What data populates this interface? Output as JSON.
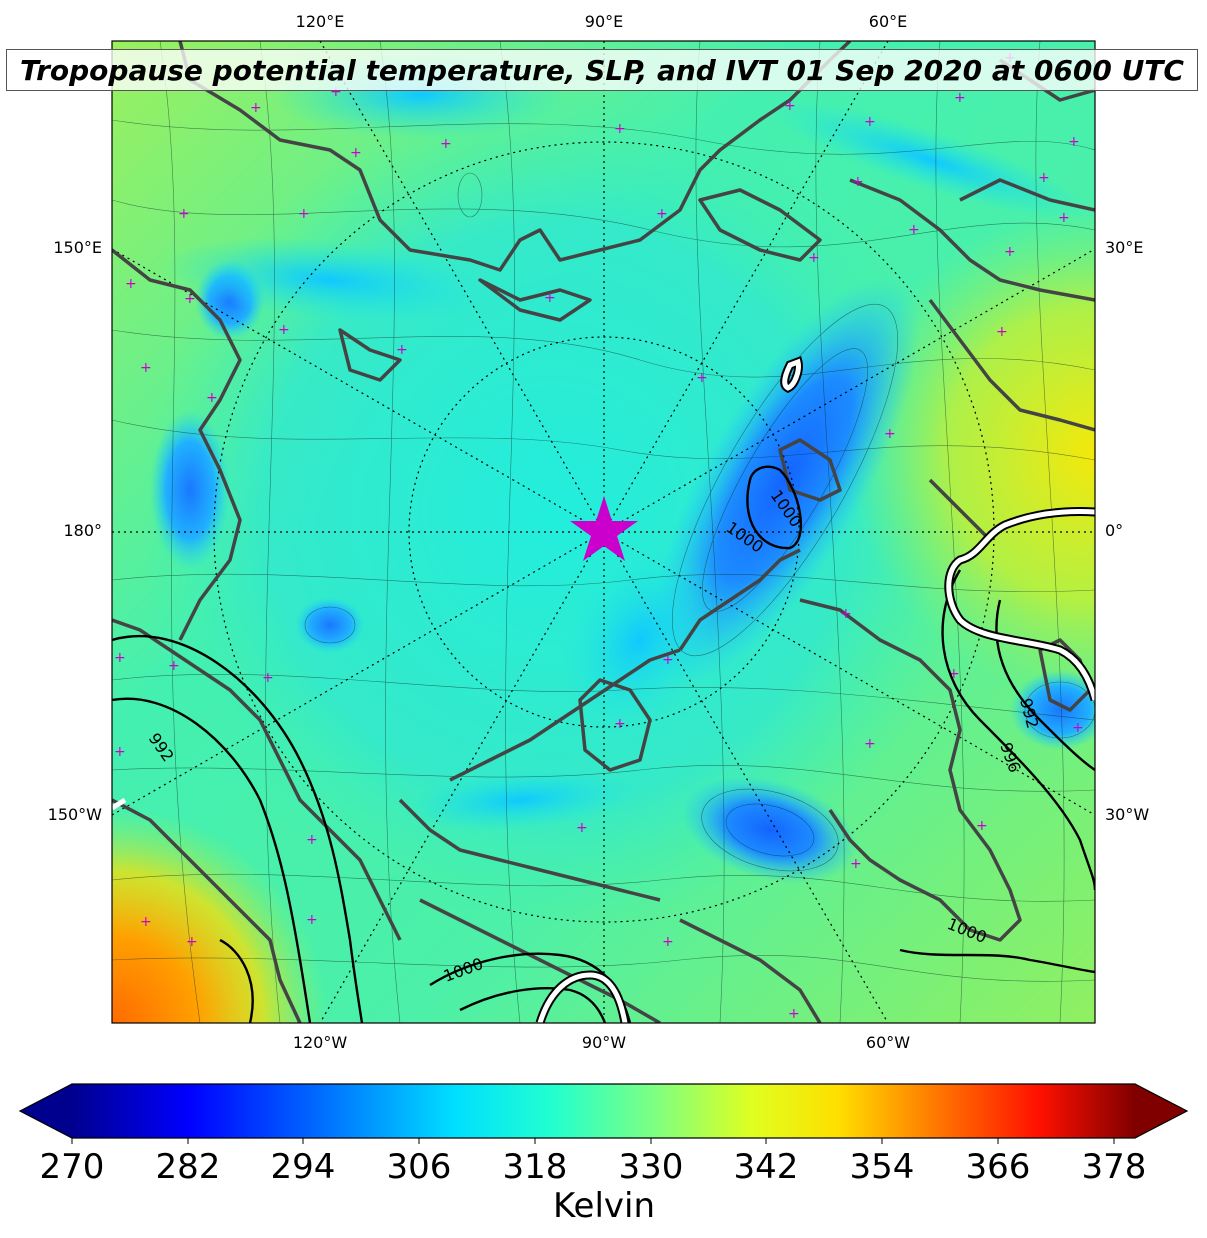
{
  "title": "Tropopause potential temperature, SLP, and IVT 01 Sep 2020 at 0600 UTC",
  "map": {
    "longitude_labels": {
      "top": [
        "120°E",
        "90°E",
        "60°E"
      ],
      "bottom": [
        "120°W",
        "90°W",
        "60°W"
      ],
      "left": [
        "150°E",
        "180°",
        "150°W"
      ],
      "right": [
        "30°E",
        "0°",
        "30°W"
      ]
    },
    "slp_contour_labels": [
      "1000",
      "1000",
      "992",
      "996",
      "992",
      "1000",
      "1000"
    ],
    "pole_marker": "star",
    "marker_color": "#cc00cc",
    "coastline_color": "#444444"
  },
  "colorbar": {
    "colormap": "jet",
    "ticks": [
      "270",
      "282",
      "294",
      "306",
      "318",
      "330",
      "342",
      "354",
      "366",
      "378"
    ],
    "min": 270,
    "max": 378,
    "label": "Kelvin",
    "extend": "both"
  }
}
